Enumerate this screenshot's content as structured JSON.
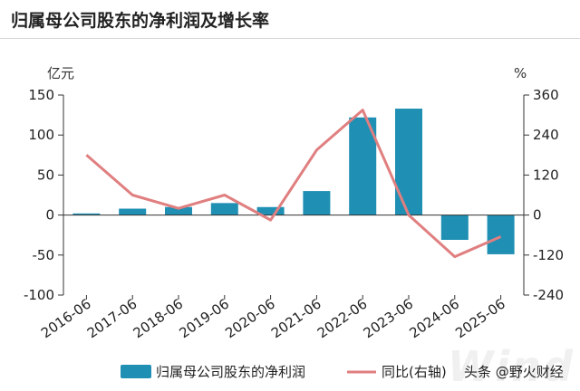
{
  "title": "归属母公司股东的净利润及增长率",
  "watermark": "Wind",
  "colors": {
    "bar": "#1f8fb3",
    "line": "#e07f80",
    "axis": "#333333"
  },
  "chart_data": {
    "type": "bar",
    "categories": [
      "2016-06",
      "2017-06",
      "2018-06",
      "2019-06",
      "2020-06",
      "2021-06",
      "2022-06",
      "2023-06",
      "2024-06",
      "2025-06"
    ],
    "series": [
      {
        "name": "归属母公司股东的净利润",
        "type": "bar",
        "axis": "left",
        "values": [
          2,
          8,
          10,
          15,
          10,
          30,
          122,
          133,
          -31,
          -49
        ]
      },
      {
        "name": "同比(右轴)",
        "type": "line",
        "axis": "right",
        "values": [
          180,
          60,
          20,
          60,
          -15,
          195,
          315,
          0,
          -125,
          -65
        ]
      }
    ],
    "left_axis": {
      "unit": "亿元",
      "ylim": [
        -100,
        150
      ],
      "ticks": [
        150,
        100,
        50,
        0,
        -50,
        -100
      ]
    },
    "right_axis": {
      "unit": "%",
      "ylim": [
        -240,
        360
      ],
      "ticks": [
        360,
        240,
        120,
        0,
        -120,
        -240
      ]
    },
    "legend": {
      "placement": "bottom",
      "extra_text": "头条 @野火财经"
    }
  }
}
